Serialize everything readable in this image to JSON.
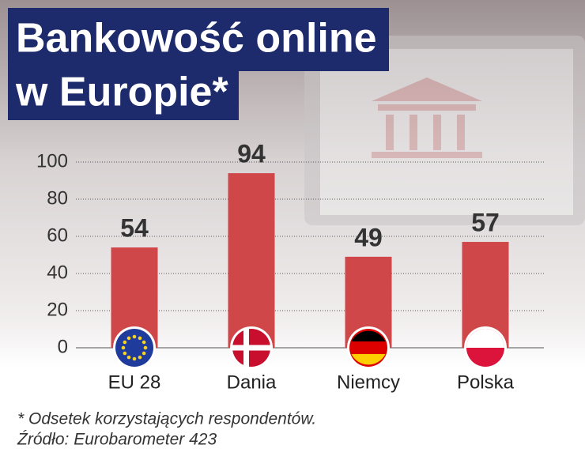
{
  "chart_data": {
    "type": "bar",
    "title_lines": [
      "Bankowość online",
      "w Europie*"
    ],
    "categories": [
      "EU 28",
      "Dania",
      "Niemcy",
      "Polska"
    ],
    "values": [
      54,
      94,
      49,
      57
    ],
    "color": "#d0474a",
    "ylim": [
      0,
      100
    ],
    "yticks": [
      0,
      20,
      40,
      60,
      80,
      100
    ],
    "grid": true,
    "notes": [
      "* Odsetek korzystających respondentów.",
      "Źródło: Eurobarometer 423"
    ]
  }
}
